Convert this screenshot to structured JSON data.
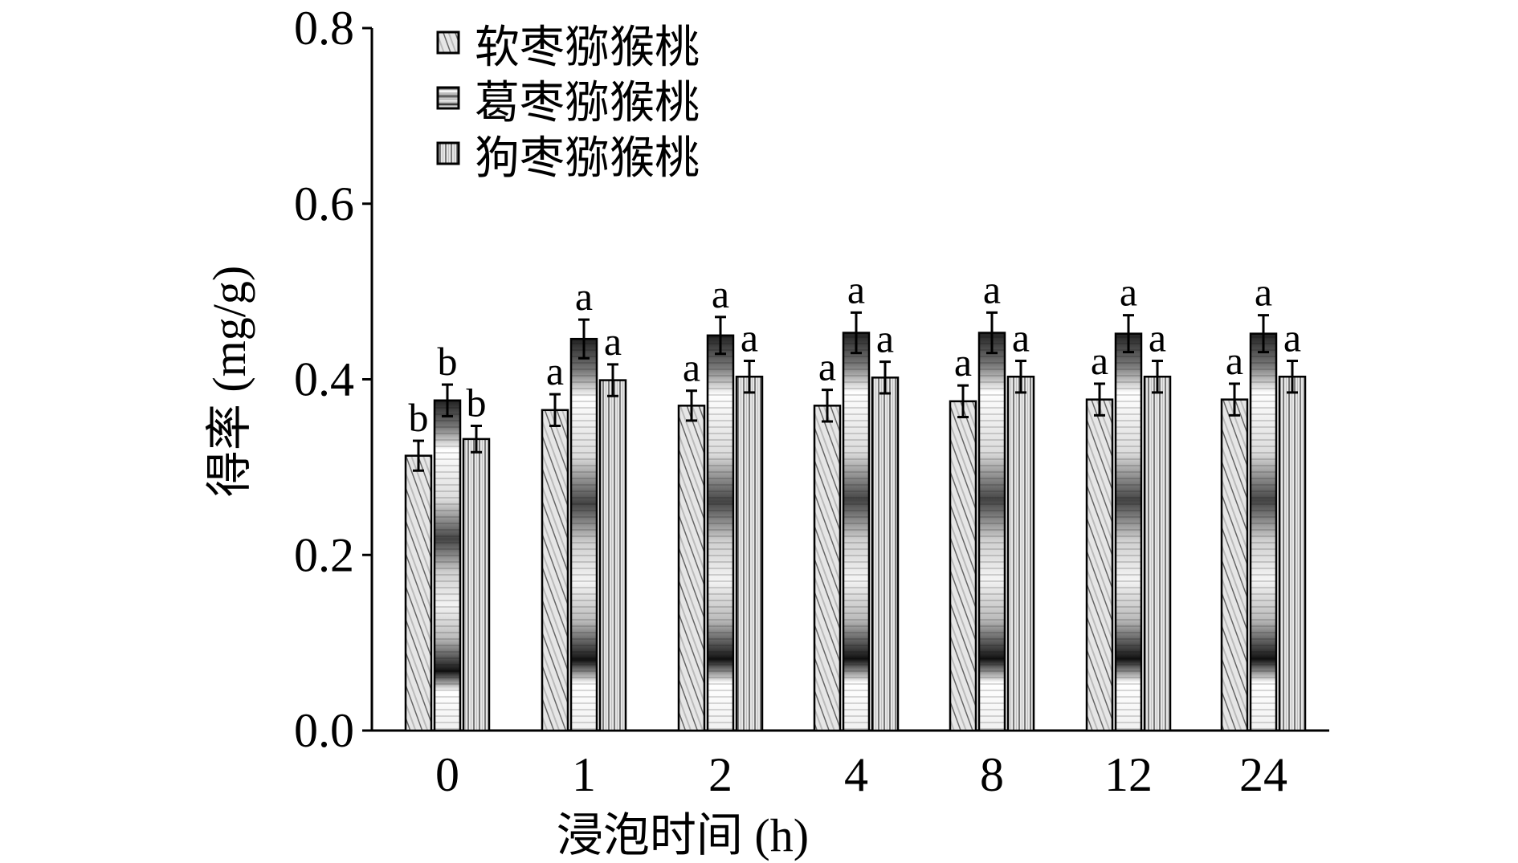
{
  "chart_data": {
    "type": "bar",
    "xlabel": "浸泡时间 (h)",
    "ylabel": "得率 (mg/g)",
    "ylim": [
      0,
      0.8
    ],
    "yticks": [
      "0.0",
      "0.2",
      "0.4",
      "0.6",
      "0.8"
    ],
    "categories": [
      "0",
      "1",
      "2",
      "4",
      "8",
      "12",
      "24"
    ],
    "legend_position": "top-left",
    "grid": false,
    "series": [
      {
        "name": "软枣猕猴桃",
        "pattern": "diagonal",
        "values": [
          0.313,
          0.365,
          0.37,
          0.37,
          0.375,
          0.377,
          0.377
        ],
        "errors": [
          0.017,
          0.018,
          0.017,
          0.018,
          0.018,
          0.018,
          0.018
        ],
        "labels": [
          "b",
          "a",
          "a",
          "a",
          "a",
          "a",
          "a"
        ]
      },
      {
        "name": "葛枣猕猴桃",
        "pattern": "horizontal",
        "values": [
          0.376,
          0.446,
          0.45,
          0.453,
          0.453,
          0.452,
          0.452
        ],
        "errors": [
          0.018,
          0.022,
          0.021,
          0.023,
          0.023,
          0.021,
          0.021
        ],
        "labels": [
          "b",
          "a",
          "a",
          "a",
          "a",
          "a",
          "a"
        ]
      },
      {
        "name": "狗枣猕猴桃",
        "pattern": "vertical",
        "values": [
          0.332,
          0.399,
          0.403,
          0.402,
          0.403,
          0.403,
          0.403
        ],
        "errors": [
          0.015,
          0.018,
          0.018,
          0.018,
          0.018,
          0.018,
          0.018
        ],
        "labels": [
          "b",
          "a",
          "a",
          "a",
          "a",
          "a",
          "a"
        ]
      }
    ]
  }
}
